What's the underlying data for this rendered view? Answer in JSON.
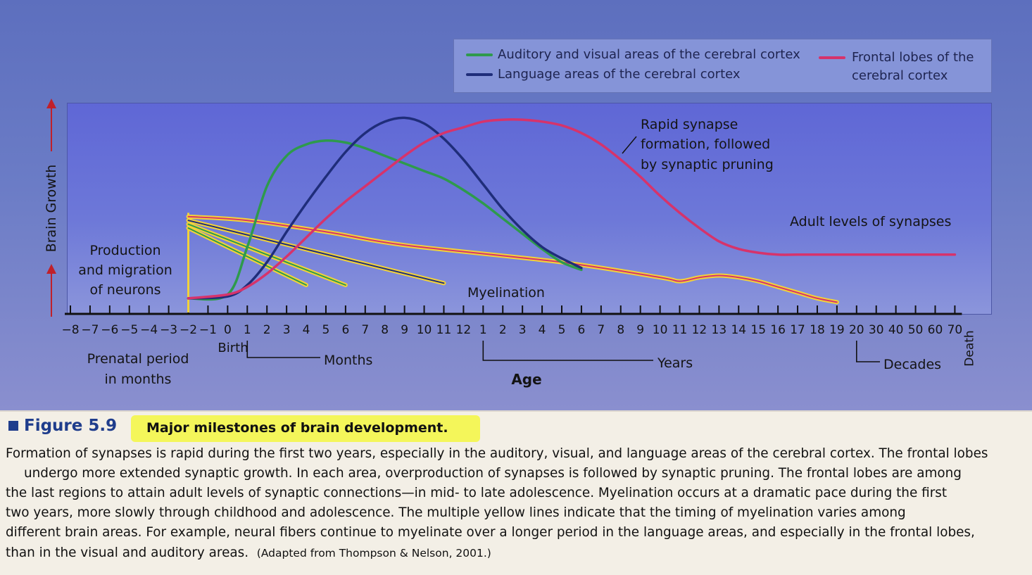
{
  "chart_data": {
    "type": "line",
    "legend": [
      {
        "name": "Auditory and visual areas of the cerebral cortex",
        "color": "#2e9a4c"
      },
      {
        "name": "Language areas of the cerebral cortex",
        "color": "#1f2d7a"
      },
      {
        "name": "Frontal lobes of the cerebral cortex",
        "color": "#d6336b"
      }
    ],
    "legend_placement": "top-right",
    "ylabel": "Brain Growth",
    "xlabel": "Age",
    "x_tick_labels": [
      "−8",
      "−7",
      "−6",
      "−5",
      "−4",
      "−3",
      "−2",
      "−1",
      "0",
      "1",
      "2",
      "3",
      "4",
      "5",
      "6",
      "7",
      "8",
      "9",
      "10",
      "11",
      "12",
      "1",
      "2",
      "3",
      "4",
      "5",
      "6",
      "7",
      "8",
      "9",
      "10",
      "11",
      "12",
      "13",
      "14",
      "15",
      "16",
      "17",
      "18",
      "19",
      "20",
      "30",
      "40",
      "50",
      "60",
      "70",
      "Death"
    ],
    "x_groups": [
      {
        "label": "Prenatal period in months"
      },
      {
        "label": "Birth"
      },
      {
        "label": "Months"
      },
      {
        "label": "Years"
      },
      {
        "label": "Decades"
      }
    ],
    "annotations": [
      "Production and migration of neurons",
      "Rapid synapse formation, followed by synaptic pruning",
      "Adult levels of synapses",
      "Myelination"
    ],
    "series": [
      {
        "name": "Auditory and visual areas of the cerebral cortex",
        "color": "#2e9a4c",
        "x": [
          "−2",
          "0",
          "1",
          "2",
          "3",
          "4",
          "5",
          "6",
          "7",
          "8",
          "9",
          "10",
          "11",
          "12",
          "1",
          "2",
          "3",
          "4",
          "5",
          "6"
        ],
        "y": [
          3,
          5,
          30,
          62,
          78,
          84,
          86,
          85,
          82,
          78,
          74,
          70,
          66,
          60,
          53,
          45,
          37,
          29,
          22,
          18
        ]
      },
      {
        "name": "Language areas of the cerebral cortex",
        "color": "#1f2d7a",
        "x": [
          "−2",
          "0",
          "1",
          "2",
          "3",
          "4",
          "5",
          "6",
          "7",
          "8",
          "9",
          "10",
          "11",
          "12",
          "1",
          "2",
          "3",
          "4",
          "5",
          "6"
        ],
        "y": [
          3,
          4,
          10,
          22,
          38,
          53,
          67,
          80,
          90,
          96,
          98,
          95,
          87,
          76,
          63,
          50,
          39,
          30,
          24,
          19
        ]
      },
      {
        "name": "Frontal lobes of the cerebral cortex",
        "color": "#d6336b",
        "x": [
          "−2",
          "0",
          "1",
          "2",
          "3",
          "4",
          "5",
          "6",
          "7",
          "8",
          "9",
          "10",
          "11",
          "12",
          "1",
          "2",
          "3",
          "4",
          "5",
          "6",
          "7",
          "8",
          "9",
          "10",
          "11",
          "12",
          "13",
          "14",
          "15",
          "16",
          "17",
          "18",
          "19",
          "20",
          "30",
          "40",
          "50",
          "60",
          "70"
        ],
        "y": [
          3,
          5,
          9,
          16,
          25,
          35,
          45,
          54,
          62,
          70,
          78,
          85,
          90,
          93,
          96,
          97,
          97,
          96,
          94,
          90,
          84,
          76,
          67,
          57,
          48,
          40,
          33,
          29,
          27,
          26,
          26,
          26,
          26,
          26,
          26,
          26,
          26,
          26,
          26
        ]
      }
    ],
    "myelination_lines": [
      {
        "name": "Myelination (auditory/visual)",
        "color": "#f2d23a",
        "x": [
          "−2",
          "4"
        ],
        "y": [
          40,
          10
        ]
      },
      {
        "name": "Myelination (language)",
        "color": "#f2d23a",
        "x": [
          "−2",
          "6"
        ],
        "y": [
          42,
          10
        ]
      },
      {
        "name": "Myelination (language, extended)",
        "color": "#f2d23a",
        "x": [
          "−2",
          "11"
        ],
        "y": [
          44,
          11
        ]
      },
      {
        "name": "Myelination (frontal lobes)",
        "color": "#f2d23a",
        "x": [
          "−2",
          "1",
          "5",
          "9",
          "5",
          "10",
          "11",
          "12",
          "13",
          "14",
          "15",
          "16",
          "17",
          "18",
          "19"
        ],
        "y": [
          46,
          44,
          38,
          31,
          22,
          14,
          12,
          14,
          15,
          14,
          12,
          9,
          6,
          3,
          1
        ]
      }
    ]
  },
  "caption": {
    "figure_number": "Figure 5.9",
    "title": "Major milestones of brain development.",
    "lines": [
      "Formation of synapses is rapid during the first two years, especially in the auditory, visual, and language areas of the cerebral cortex. The frontal lobes",
      "undergo more extended synaptic growth. In each area, overproduction of synapses is followed by synaptic pruning. The frontal lobes are among",
      "the last regions to attain adult levels of synaptic connections—in mid- to late adolescence. Myelination occurs at a dramatic pace during the first",
      "two years, more slowly through childhood and adolescence. The multiple yellow lines indicate that the timing of myelination varies among",
      "different brain areas. For example, neural fibers continue to myelinate over a longer period in the language areas, and especially in the frontal lobes,",
      "than in the visual and auditory areas."
    ],
    "source": "(Adapted from Thompson & Nelson, 2001.)"
  }
}
